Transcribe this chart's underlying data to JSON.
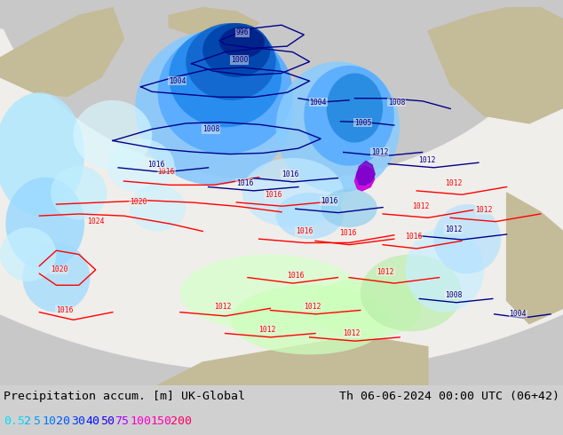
{
  "title_left": "Precipitation accum. [m] UK-Global",
  "title_right": "Th 06-06-2024 00:00 UTC (06+42)",
  "legend_values": [
    "0.5",
    "2",
    "5",
    "10",
    "20",
    "30",
    "40",
    "50",
    "75",
    "100",
    "150",
    "200"
  ],
  "legend_colors": {
    "0.5": "#00ddff",
    "2": "#00bbff",
    "5": "#0099ff",
    "10": "#0077ff",
    "20": "#0055ff",
    "30": "#0033ff",
    "40": "#0011ff",
    "50": "#2200ee",
    "75": "#aa00ff",
    "100": "#ff00cc",
    "150": "#ff00aa",
    "200": "#ff0066"
  },
  "bg_color": "#c8c8c8",
  "panel_bg": "#d0d0d0",
  "text_color": "#000000",
  "title_fontsize": 9.5,
  "legend_fontsize": 9.5
}
